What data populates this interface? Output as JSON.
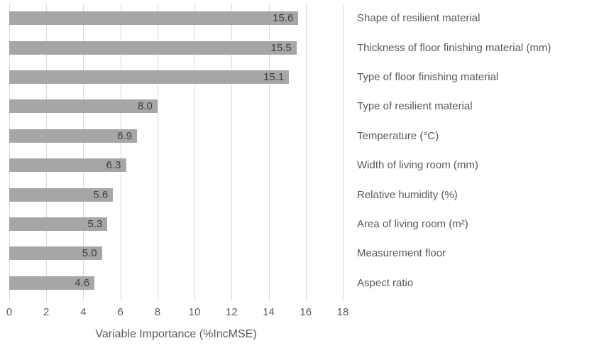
{
  "chart_data": {
    "type": "bar",
    "orientation": "horizontal",
    "title": "",
    "xlabel": "Variable Importance (%IncMSE)",
    "ylabel": "",
    "categories": [
      "Shape of resilient material",
      "Thickness of floor finishing material (mm)",
      "Type of floor finishing material",
      "Type of resilient material",
      "Temperature (°C)",
      "Width of living room (mm)",
      "Relative humidity (%)",
      "Area of living room (m²)",
      "Measurement floor",
      "Aspect ratio"
    ],
    "values": [
      15.6,
      15.5,
      15.1,
      8.0,
      6.9,
      6.3,
      5.6,
      5.3,
      5.0,
      4.6
    ],
    "value_labels": [
      "15.6",
      "15.5",
      "15.1",
      "8.0",
      "6.9",
      "6.3",
      "5.6",
      "5.3",
      "5.0",
      "4.6"
    ],
    "x_ticks": [
      0,
      2,
      4,
      6,
      8,
      10,
      12,
      14,
      16,
      18
    ],
    "xlim": [
      0,
      18
    ],
    "grid": "vertical",
    "legend_position": "none",
    "bar_color": "#a6a6a6",
    "gridline_color": "#d9d9d9",
    "value_label_color": "#404040",
    "axis_text_color": "#595959"
  }
}
